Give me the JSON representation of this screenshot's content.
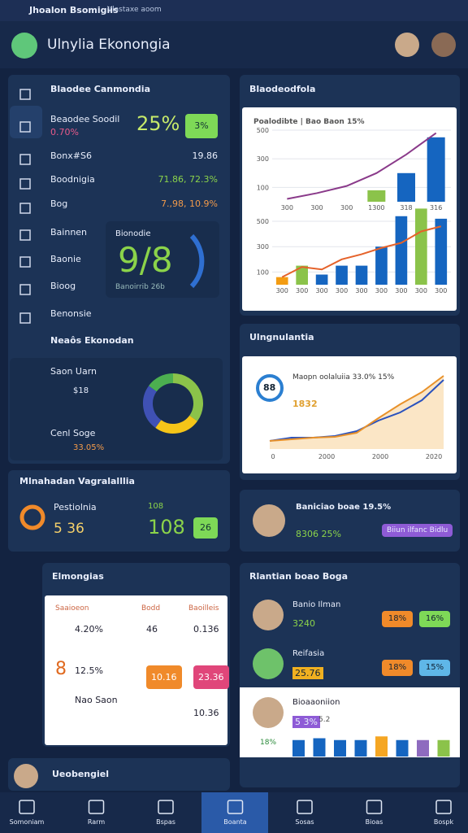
{
  "status": {
    "title": "Jhoalon Bsomigiis",
    "subtitle": "Vlastaxe aoom"
  },
  "header": {
    "title": "Ulnylia Ekonongia"
  },
  "overview": {
    "title": "Blaodee Canmondia",
    "rows": [
      {
        "label": "Beaodee Soodil",
        "sub": "0.70%",
        "value": "25%",
        "badge": "3%"
      },
      {
        "label": "Bonx#S6",
        "value": "19.86"
      },
      {
        "label": "Boodnigia",
        "value": "71.86, 72.3%"
      },
      {
        "label": "Bog",
        "value": "7.,98, 10.9%"
      }
    ],
    "menu": [
      "Bainnen",
      "Baonie",
      "Bioog",
      "Benonsie"
    ],
    "gauge": {
      "label": "Bionodie",
      "value": "9/8",
      "caption": "Banoirrib 26b"
    }
  },
  "mix": {
    "title": "Neaôs Ekonodan",
    "items": [
      {
        "label": "Saon Uarn",
        "value": "$18"
      },
      {
        "label": "Cenl Soge",
        "value": "33.05%"
      }
    ],
    "donut": {
      "values": [
        35,
        25,
        25,
        15
      ],
      "colors": [
        "#8bc34a",
        "#f5c518",
        "#3f51b5",
        "#4caf50"
      ]
    }
  },
  "progress": {
    "title": "Mlnahadan Vagralalllia",
    "label": "Pestiolnia",
    "value": "5 36",
    "sub": "108",
    "big": "108",
    "badge": "26"
  },
  "trend": {
    "title": "Blaodeodfola",
    "legend": "Poalodibte | Bao Baon 15%",
    "top": {
      "categories": [
        "300",
        "300",
        "300",
        "1300",
        "318",
        "316"
      ],
      "ylim": [
        0,
        500
      ],
      "yticks": [
        100,
        300,
        500
      ],
      "bars": [
        null,
        null,
        null,
        80,
        200,
        450
      ],
      "line": [
        20,
        60,
        110,
        200,
        330,
        480
      ]
    },
    "bottom": {
      "categories": [
        "300",
        "300",
        "300",
        "300",
        "300",
        "300",
        "300",
        "300",
        "300"
      ],
      "ylim": [
        0,
        500
      ],
      "yticks": [
        100,
        300,
        500
      ],
      "bars": [
        60,
        150,
        80,
        150,
        150,
        300,
        540,
        600,
        520
      ],
      "bar_colors": [
        "#f39c12",
        "#8bc34a",
        "#1565c0",
        "#1565c0",
        "#1565c0",
        "#1565c0",
        "#1565c0",
        "#8bc34a",
        "#1565c0"
      ],
      "line": [
        60,
        140,
        120,
        200,
        240,
        290,
        330,
        420,
        460
      ]
    }
  },
  "growth": {
    "title": "Ulngnulantia",
    "badge": "88",
    "legend": "Maopn oolaluiia 33.0% 15%",
    "value": "1832",
    "categories": [
      "0",
      "2000",
      "2000",
      "2020"
    ],
    "ylim": [
      0,
      100
    ],
    "blue": [
      10,
      14,
      14,
      16,
      22,
      35,
      45,
      60,
      85
    ],
    "orange": [
      10,
      12,
      14,
      15,
      20,
      38,
      55,
      70,
      90
    ]
  },
  "profile": {
    "name": "Baniciao boae 19.5%",
    "value": "8306 25%",
    "button": "Biiun ilfanc Bidlu"
  },
  "table": {
    "title": "Elmongias",
    "headers": [
      "Saaioeon",
      "Bodd",
      "Baoilleis"
    ],
    "rows": [
      [
        "4.20%",
        "46",
        "0.136"
      ],
      [
        "12.5%",
        "10.16",
        "23.36"
      ],
      [
        "Nao Saon",
        "",
        "10.36"
      ]
    ],
    "first": [
      "",
      "8",
      ""
    ]
  },
  "people": {
    "title": "Rlantian boao Boga",
    "items": [
      {
        "name": "Banio Ilman",
        "value": "3240",
        "badges": [
          "18%",
          "16%"
        ]
      },
      {
        "name": "Reifasia",
        "value": "25.76",
        "badges": [
          "18%",
          "15%"
        ]
      },
      {
        "name": "Bioaaoniion",
        "value": "5 3%",
        "badges": [
          "5.2"
        ]
      }
    ],
    "note": "18%",
    "bars": [
      45,
      50,
      45,
      45,
      55,
      45,
      45,
      45
    ],
    "bar_colors": [
      "#1565c0",
      "#1565c0",
      "#1565c0",
      "#1565c0",
      "#f5a623",
      "#1565c0",
      "#8e6bbf",
      "#8bc34a"
    ]
  },
  "footer": {
    "title": "Ueobengiel"
  },
  "nav": [
    "Somoniam",
    "Rarm",
    "Bspas",
    "Boanta",
    "Sosas",
    "Bioas",
    "Bospk"
  ]
}
